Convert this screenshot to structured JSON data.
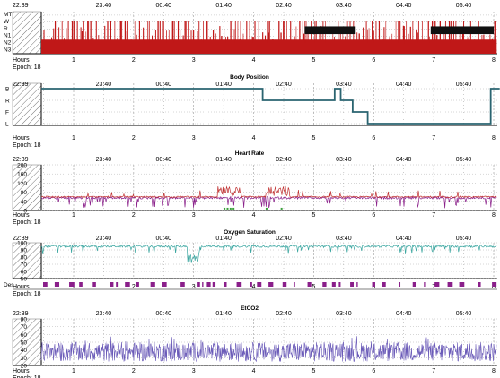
{
  "colors": {
    "hypnogram": "#c01818",
    "hypnogram_dark": "#111111",
    "body_position": "#2a6470",
    "hr_line": "#c03030",
    "hr_purple": "#8a1f8a",
    "hr_event": "#3aa03a",
    "spo2_line": "#3aa6a0",
    "spo2_desat": "#8a1f8a",
    "etco2_line": "#6a5ab8",
    "grid": "#9a9a9a",
    "axis": "#000000",
    "start_hatch": "#777777"
  },
  "time_axis": {
    "start_label": "22:39",
    "clock_labels": [
      "23:40",
      "00:40",
      "01:40",
      "02:40",
      "03:40",
      "04:40",
      "05:40"
    ],
    "hour_labels": [
      "1",
      "2",
      "3",
      "4",
      "5",
      "6",
      "7",
      "8"
    ],
    "hours_label": "Hours",
    "epoch_label": "Epoch: 18"
  },
  "chart_data": [
    {
      "type": "area",
      "name": "hypnogram",
      "title": "",
      "y_categories": [
        "MT",
        "W",
        "R",
        "N1",
        "N2",
        "N3"
      ],
      "x_unit": "hours",
      "xlim": [
        0,
        8.1
      ],
      "summary": "Fragmented sleep, predominantly N2/N3 with frequent wake transitions",
      "rem_periods_hours": [
        [
          4.85,
          5.7
        ],
        [
          6.95,
          8.0
        ]
      ]
    },
    {
      "type": "line",
      "name": "body_position",
      "title": "Body Position",
      "y_categories": [
        "B",
        "R",
        "F",
        "L"
      ],
      "x_unit": "hours",
      "xlim": [
        0,
        8.1
      ],
      "segments": [
        {
          "start": 0.0,
          "end": 4.15,
          "position": "B"
        },
        {
          "start": 4.15,
          "end": 5.35,
          "position": "R"
        },
        {
          "start": 5.35,
          "end": 5.45,
          "position": "B"
        },
        {
          "start": 5.45,
          "end": 5.65,
          "position": "R"
        },
        {
          "start": 5.65,
          "end": 5.9,
          "position": "F"
        },
        {
          "start": 5.9,
          "end": 7.95,
          "position": "L"
        },
        {
          "start": 7.95,
          "end": 8.1,
          "position": "B"
        }
      ]
    },
    {
      "type": "line",
      "name": "heart_rate",
      "title": "Heart Rate",
      "yticks": [
        200,
        160,
        120,
        80,
        40,
        0
      ],
      "ylim": [
        0,
        200
      ],
      "x_unit": "hours",
      "xlim": [
        0,
        8.1
      ],
      "baseline": 60,
      "summary": "Mostly 55-65 bpm with spikes up to ~110 bpm near hours 3.5 and 4.4"
    },
    {
      "type": "line",
      "name": "oxygen_saturation",
      "title": "Oxygen Saturation",
      "yticks": [
        100,
        90,
        80,
        70,
        60,
        50
      ],
      "ylim": [
        50,
        100
      ],
      "desat_label": "Des",
      "x_unit": "hours",
      "xlim": [
        0,
        8.1
      ],
      "baseline": 95,
      "summary": "Baseline 93-97%, repeated desaturations down to ~75% between hours 2.9 and 3.1"
    },
    {
      "type": "line",
      "name": "etco2",
      "title": "EtCO2",
      "yticks": [
        80,
        70,
        60,
        50,
        40,
        30,
        20
      ],
      "ylim": [
        20,
        80
      ],
      "x_unit": "hours",
      "xlim": [
        0,
        8.1
      ],
      "summary": "Noisy signal mostly ranging 25-50 mmHg"
    }
  ]
}
